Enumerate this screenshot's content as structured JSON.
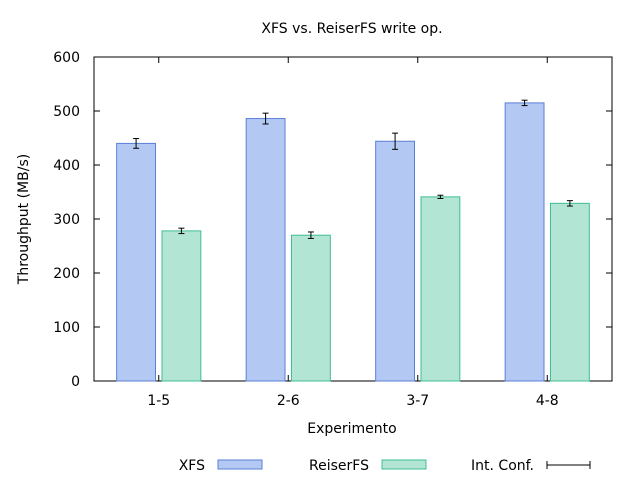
{
  "chart_data": {
    "type": "bar",
    "title": "XFS vs. ReiserFS write op.",
    "xlabel": "Experimento",
    "ylabel": "Throughput (MB/s)",
    "categories": [
      "1-5",
      "2-6",
      "3-7",
      "4-8"
    ],
    "ylim": [
      0,
      600
    ],
    "yticks": [
      0,
      100,
      200,
      300,
      400,
      500,
      600
    ],
    "grid": false,
    "legend_position": "bottom",
    "series": [
      {
        "name": "XFS",
        "values": [
          440,
          486,
          444,
          515
        ],
        "error": [
          9,
          10,
          15,
          5
        ],
        "color": "#b3c8f3",
        "stroke": "#5b7fd6"
      },
      {
        "name": "ReiserFS",
        "values": [
          278,
          270,
          341,
          329
        ],
        "error": [
          5,
          6,
          3,
          5
        ],
        "color": "#b3e5d4",
        "stroke": "#3fbf91"
      }
    ],
    "error_legend": "Int. Conf."
  }
}
